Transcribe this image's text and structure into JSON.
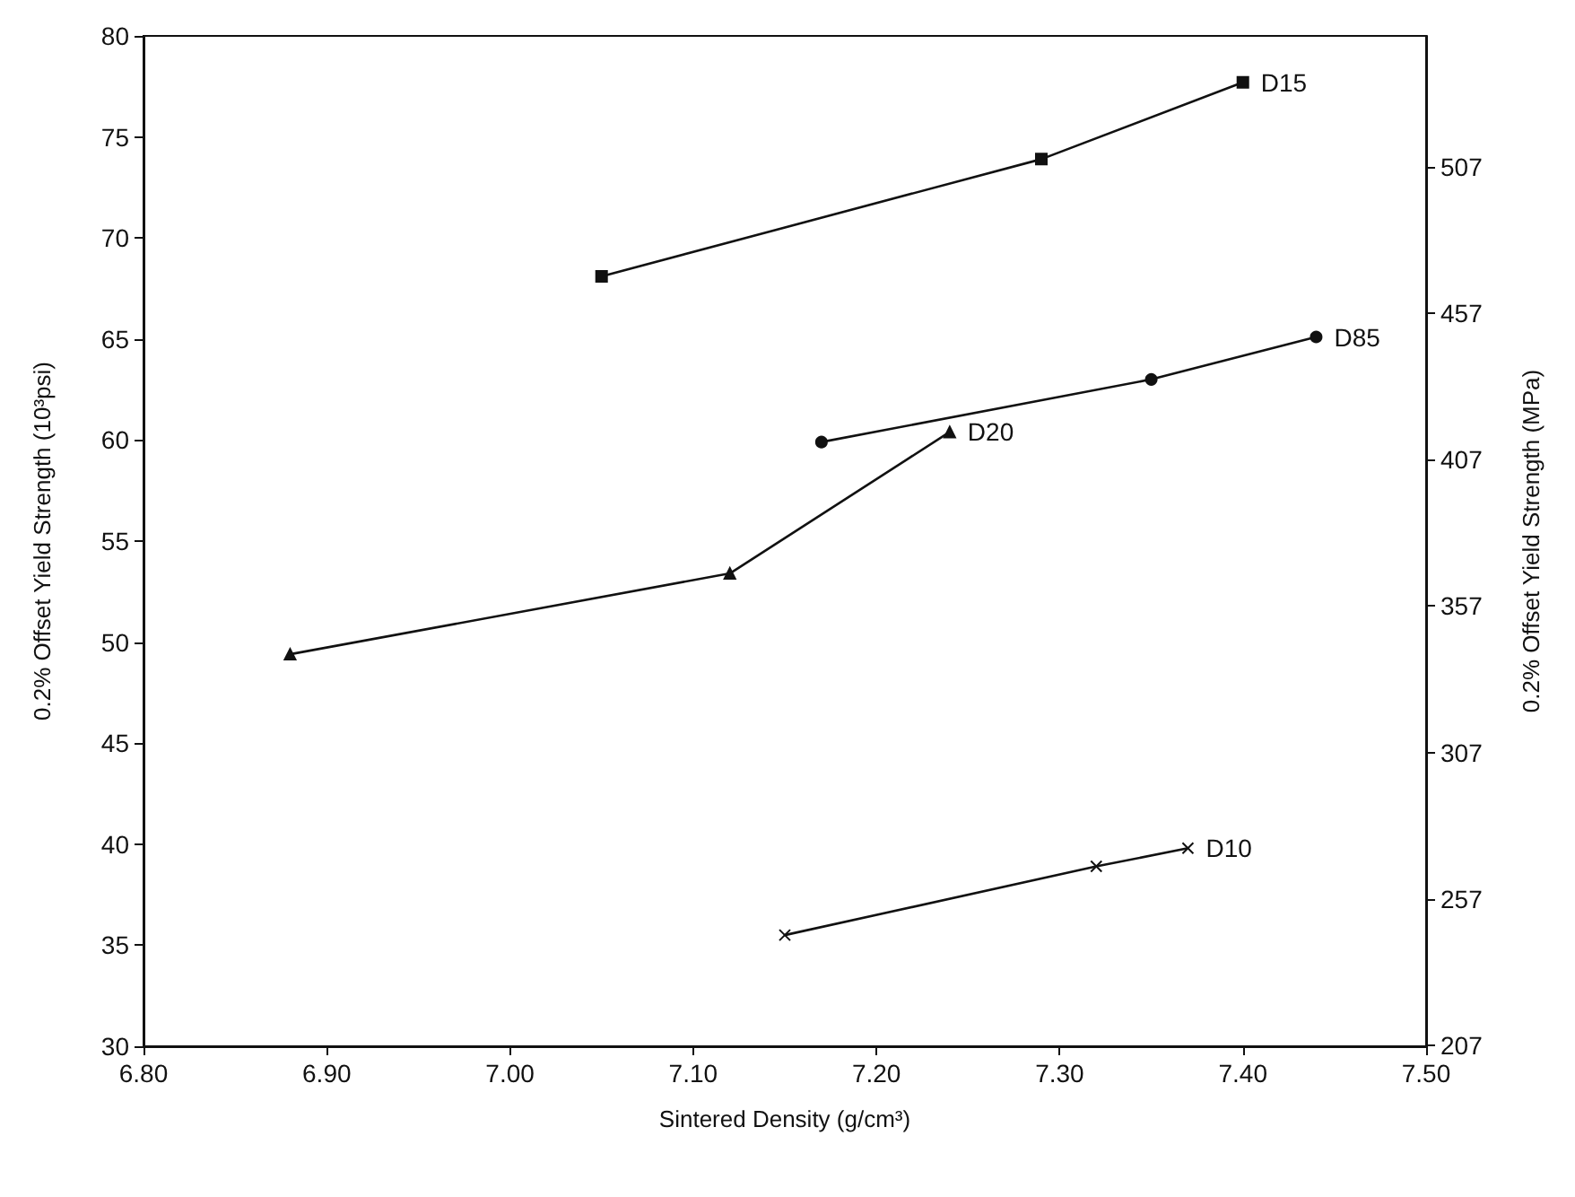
{
  "chart_data": {
    "type": "line",
    "xlabel": "Sintered Density (g/cm³)",
    "ylabel": "0.2% Offset Yield Strength (10³psi)",
    "y2label": "0.2% Offset Yield Strength (MPa)",
    "xlim": [
      6.8,
      7.5
    ],
    "xticks": [
      {
        "value": 6.8,
        "label": "6.80"
      },
      {
        "value": 6.9,
        "label": "6.90"
      },
      {
        "value": 7.0,
        "label": "7.00"
      },
      {
        "value": 7.1,
        "label": "7.10"
      },
      {
        "value": 7.2,
        "label": "7.20"
      },
      {
        "value": 7.3,
        "label": "7.30"
      },
      {
        "value": 7.4,
        "label": "7.40"
      },
      {
        "value": 7.5,
        "label": "7.50"
      }
    ],
    "ylim": [
      30,
      80
    ],
    "yticks": [
      30,
      35,
      40,
      45,
      50,
      55,
      60,
      65,
      70,
      75,
      80
    ],
    "y2lim": [
      206.8,
      551.6
    ],
    "y2ticks": [
      207,
      257,
      307,
      357,
      407,
      457,
      507
    ],
    "grid": false,
    "legend": false,
    "line_style": "solid",
    "series": [
      {
        "name": "D15",
        "color": "#111111",
        "marker": "square",
        "x": [
          7.05,
          7.29,
          7.4
        ],
        "values": [
          68.1,
          73.9,
          77.7
        ]
      },
      {
        "name": "D85",
        "color": "#111111",
        "marker": "circle",
        "x": [
          7.17,
          7.35,
          7.44
        ],
        "values": [
          59.9,
          63.0,
          65.1
        ]
      },
      {
        "name": "D20",
        "color": "#111111",
        "marker": "triangle",
        "x": [
          6.88,
          7.12,
          7.24
        ],
        "values": [
          49.4,
          53.4,
          60.4
        ]
      },
      {
        "name": "D10",
        "color": "#111111",
        "marker": "cross",
        "x": [
          7.15,
          7.32,
          7.37
        ],
        "values": [
          35.5,
          38.9,
          39.8
        ]
      }
    ]
  }
}
